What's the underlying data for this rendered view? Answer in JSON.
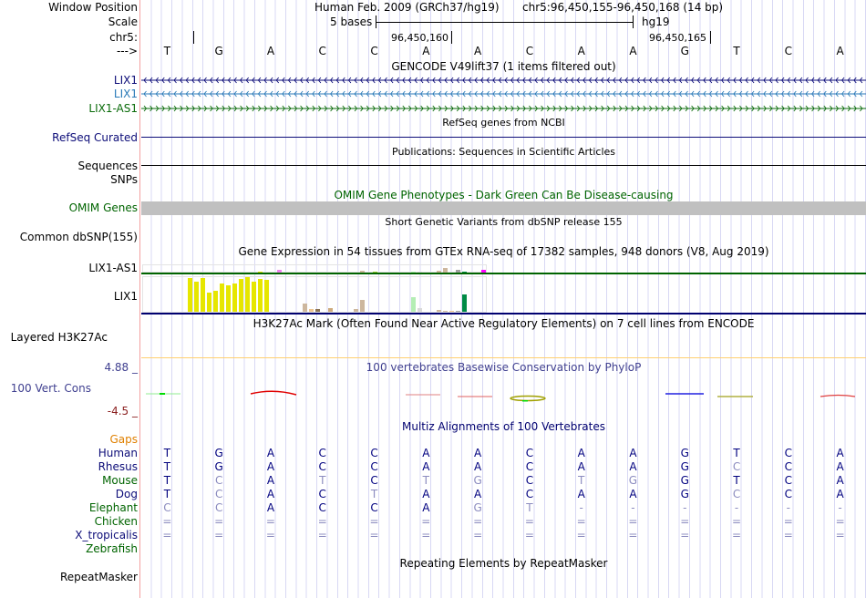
{
  "labels": {
    "window_position": "Window Position",
    "scale": "Scale",
    "chr": "chr5:",
    "strand": "--->",
    "lix1_a": "LIX1",
    "lix1_b": "LIX1",
    "lix1_as1": "LIX1-AS1",
    "refseq_curated": "RefSeq Curated",
    "sequences": "Sequences",
    "snps": "SNPs",
    "omim_genes": "OMIM Genes",
    "common_dbsnp": "Common dbSNP(155)",
    "gtex_lix1_as1": "LIX1-AS1",
    "gtex_lix1": "LIX1",
    "h3k27ac": "Layered H3K27Ac",
    "cons_max": "4.88 _",
    "cons": "100 Vert. Cons",
    "cons_min": "-4.5 _",
    "gaps": "Gaps",
    "human": "Human",
    "rhesus": "Rhesus",
    "mouse": "Mouse",
    "dog": "Dog",
    "elephant": "Elephant",
    "chicken": "Chicken",
    "x_tropicalis": "X_tropicalis",
    "zebrafish": "Zebrafish",
    "repeatmasker": "RepeatMasker"
  },
  "header": {
    "assembly": "Human Feb. 2009 (GRCh37/hg19)",
    "position": "chr5:96,450,155-96,450,168 (14 bp)",
    "scale_label": "5 bases",
    "scale_db": "hg19",
    "tick1": "96,450,160",
    "tick2": "96,450,165"
  },
  "bases": [
    "T",
    "G",
    "A",
    "C",
    "C",
    "A",
    "A",
    "C",
    "A",
    "A",
    "G",
    "T",
    "C",
    "A"
  ],
  "titles": {
    "gencode": "GENCODE V49lift37 (1 items filtered out)",
    "refseq": "RefSeq genes from NCBI",
    "publications": "Publications: Sequences in Scientific Articles",
    "omim": "OMIM Gene Phenotypes - Dark Green Can Be Disease-causing",
    "dbsnp": "Short Genetic Variants from dbSNP release 155",
    "gtex": "Gene Expression in 54 tissues from GTEx RNA-seq of 17382 samples, 948 donors (V8, Aug 2019)",
    "h3k27ac": "H3K27Ac Mark (Often Found Near Active Regulatory Elements) on 7 cell lines from ENCODE",
    "phylop": "100 vertebrates Basewise Conservation by PhyloP",
    "multiz": "Multiz Alignments of 100 Vertebrates",
    "repeatmasker": "Repeating Elements by RepeatMasker"
  },
  "alignment": {
    "human": [
      "T",
      "G",
      "A",
      "C",
      "C",
      "A",
      "A",
      "C",
      "A",
      "A",
      "G",
      "T",
      "C",
      "A"
    ],
    "rhesus": [
      "T",
      "G",
      "A",
      "C",
      "C",
      "A",
      "A",
      "C",
      "A",
      "A",
      "G",
      "C",
      "C",
      "A"
    ],
    "mouse": [
      "T",
      "C",
      "A",
      "T",
      "C",
      "T",
      "G",
      "C",
      "T",
      "G",
      "G",
      "T",
      "C",
      "A"
    ],
    "dog": [
      "T",
      "C",
      "A",
      "C",
      "T",
      "A",
      "A",
      "C",
      "A",
      "A",
      "G",
      "C",
      "C",
      "A"
    ],
    "elephant": [
      "C",
      "C",
      "A",
      "C",
      "C",
      "A",
      "G",
      "T",
      "-",
      "-",
      "-",
      "-",
      "-",
      "-"
    ],
    "chicken": [
      "=",
      "=",
      "=",
      "=",
      "=",
      "=",
      "=",
      "=",
      "=",
      "=",
      "=",
      "=",
      "=",
      "="
    ],
    "x_tropicalis": [
      "=",
      "=",
      "=",
      "=",
      "=",
      "=",
      "=",
      "=",
      "=",
      "=",
      "=",
      "=",
      "=",
      "="
    ]
  },
  "colors": {
    "navy": "#000080",
    "dim": "#8c8cc0",
    "green": "#006400",
    "gencode_lix1": "#0c0c78",
    "gencode_lix1_b": "#2a7ab8",
    "gencode_as1": "#0a6b0a",
    "gaps": "#e08000",
    "omim": "#c0c0c0"
  },
  "gtex": {
    "tissue_count": 54,
    "lix1": [
      {
        "i": 7,
        "v": 37,
        "c": "#e6e600"
      },
      {
        "i": 8,
        "v": 33,
        "c": "#e6e600"
      },
      {
        "i": 9,
        "v": 37,
        "c": "#e6e600"
      },
      {
        "i": 10,
        "v": 21,
        "c": "#e6e600"
      },
      {
        "i": 11,
        "v": 23,
        "c": "#e6e600"
      },
      {
        "i": 12,
        "v": 31,
        "c": "#e6e600"
      },
      {
        "i": 13,
        "v": 29,
        "c": "#e6e600"
      },
      {
        "i": 14,
        "v": 31,
        "c": "#e6e600"
      },
      {
        "i": 15,
        "v": 36,
        "c": "#e6e600"
      },
      {
        "i": 16,
        "v": 38,
        "c": "#e6e600"
      },
      {
        "i": 17,
        "v": 33,
        "c": "#e6e600"
      },
      {
        "i": 18,
        "v": 36,
        "c": "#e6e600"
      },
      {
        "i": 19,
        "v": 35,
        "c": "#e6e600"
      },
      {
        "i": 25,
        "v": 9,
        "c": "#cdb79e"
      },
      {
        "i": 26,
        "v": 3,
        "c": "#eec591"
      },
      {
        "i": 27,
        "v": 3,
        "c": "#8b7355"
      },
      {
        "i": 29,
        "v": 4,
        "c": "#cdaa7d"
      },
      {
        "i": 33,
        "v": 3,
        "c": "#cdb79e"
      },
      {
        "i": 34,
        "v": 13,
        "c": "#cdb79e"
      },
      {
        "i": 42,
        "v": 16,
        "c": "#b4eeb4"
      },
      {
        "i": 43,
        "v": 4,
        "c": "#d9d9d9"
      },
      {
        "i": 46,
        "v": 2,
        "c": "#cdb79e"
      },
      {
        "i": 47,
        "v": 1,
        "c": "#cdb79e"
      },
      {
        "i": 48,
        "v": 1,
        "c": "#eec591"
      },
      {
        "i": 49,
        "v": 1,
        "c": "#a0a0a0"
      },
      {
        "i": 50,
        "v": 19,
        "c": "#008b45"
      }
    ],
    "lix1_as1": [
      {
        "i": 18,
        "v": 1,
        "c": "#e6e600"
      },
      {
        "i": 21,
        "v": 3,
        "c": "#ee82ee"
      },
      {
        "i": 34,
        "v": 2,
        "c": "#cdb79e"
      },
      {
        "i": 36,
        "v": 1,
        "c": "#9acd32"
      },
      {
        "i": 42,
        "v": 1,
        "c": "#b4eeb4"
      },
      {
        "i": 43,
        "v": 1,
        "c": "#d9d9d9"
      },
      {
        "i": 46,
        "v": 2,
        "c": "#cdb79e"
      },
      {
        "i": 47,
        "v": 5,
        "c": "#cdb79e"
      },
      {
        "i": 49,
        "v": 3,
        "c": "#a0a0a0"
      },
      {
        "i": 50,
        "v": 1,
        "c": "#008b45"
      },
      {
        "i": 53,
        "v": 3,
        "c": "#ff00ff"
      }
    ]
  }
}
